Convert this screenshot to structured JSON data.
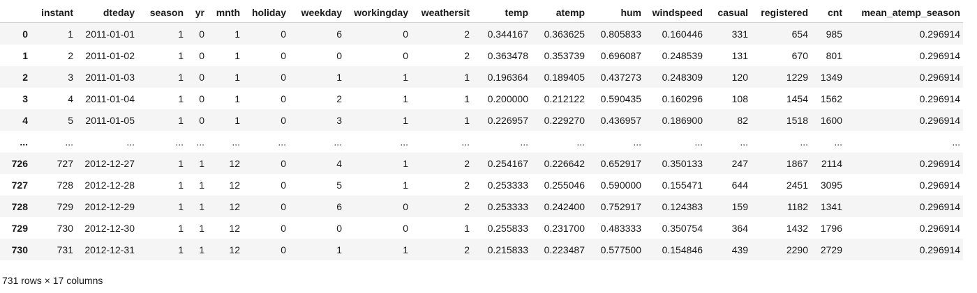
{
  "table": {
    "index_header": "",
    "columns": [
      "instant",
      "dteday",
      "season",
      "yr",
      "mnth",
      "holiday",
      "weekday",
      "workingday",
      "weathersit",
      "temp",
      "atemp",
      "hum",
      "windspeed",
      "casual",
      "registered",
      "cnt",
      "mean_atemp_season"
    ],
    "rows": [
      {
        "index": "0",
        "cells": [
          "1",
          "2011-01-01",
          "1",
          "0",
          "1",
          "0",
          "6",
          "0",
          "2",
          "0.344167",
          "0.363625",
          "0.805833",
          "0.160446",
          "331",
          "654",
          "985",
          "0.296914"
        ]
      },
      {
        "index": "1",
        "cells": [
          "2",
          "2011-01-02",
          "1",
          "0",
          "1",
          "0",
          "0",
          "0",
          "2",
          "0.363478",
          "0.353739",
          "0.696087",
          "0.248539",
          "131",
          "670",
          "801",
          "0.296914"
        ]
      },
      {
        "index": "2",
        "cells": [
          "3",
          "2011-01-03",
          "1",
          "0",
          "1",
          "0",
          "1",
          "1",
          "1",
          "0.196364",
          "0.189405",
          "0.437273",
          "0.248309",
          "120",
          "1229",
          "1349",
          "0.296914"
        ]
      },
      {
        "index": "3",
        "cells": [
          "4",
          "2011-01-04",
          "1",
          "0",
          "1",
          "0",
          "2",
          "1",
          "1",
          "0.200000",
          "0.212122",
          "0.590435",
          "0.160296",
          "108",
          "1454",
          "1562",
          "0.296914"
        ]
      },
      {
        "index": "4",
        "cells": [
          "5",
          "2011-01-05",
          "1",
          "0",
          "1",
          "0",
          "3",
          "1",
          "1",
          "0.226957",
          "0.229270",
          "0.436957",
          "0.186900",
          "82",
          "1518",
          "1600",
          "0.296914"
        ]
      },
      {
        "index": "...",
        "cells": [
          "...",
          "...",
          "...",
          "...",
          "...",
          "...",
          "...",
          "...",
          "...",
          "...",
          "...",
          "...",
          "...",
          "...",
          "...",
          "...",
          "..."
        ]
      },
      {
        "index": "726",
        "cells": [
          "727",
          "2012-12-27",
          "1",
          "1",
          "12",
          "0",
          "4",
          "1",
          "2",
          "0.254167",
          "0.226642",
          "0.652917",
          "0.350133",
          "247",
          "1867",
          "2114",
          "0.296914"
        ]
      },
      {
        "index": "727",
        "cells": [
          "728",
          "2012-12-28",
          "1",
          "1",
          "12",
          "0",
          "5",
          "1",
          "2",
          "0.253333",
          "0.255046",
          "0.590000",
          "0.155471",
          "644",
          "2451",
          "3095",
          "0.296914"
        ]
      },
      {
        "index": "728",
        "cells": [
          "729",
          "2012-12-29",
          "1",
          "1",
          "12",
          "0",
          "6",
          "0",
          "2",
          "0.253333",
          "0.242400",
          "0.752917",
          "0.124383",
          "159",
          "1182",
          "1341",
          "0.296914"
        ]
      },
      {
        "index": "729",
        "cells": [
          "730",
          "2012-12-30",
          "1",
          "1",
          "12",
          "0",
          "0",
          "0",
          "1",
          "0.255833",
          "0.231700",
          "0.483333",
          "0.350754",
          "364",
          "1432",
          "1796",
          "0.296914"
        ]
      },
      {
        "index": "730",
        "cells": [
          "731",
          "2012-12-31",
          "1",
          "1",
          "12",
          "0",
          "1",
          "1",
          "2",
          "0.215833",
          "0.223487",
          "0.577500",
          "0.154846",
          "439",
          "2290",
          "2729",
          "0.296914"
        ]
      }
    ]
  },
  "shape_text": "731 rows × 17 columns"
}
